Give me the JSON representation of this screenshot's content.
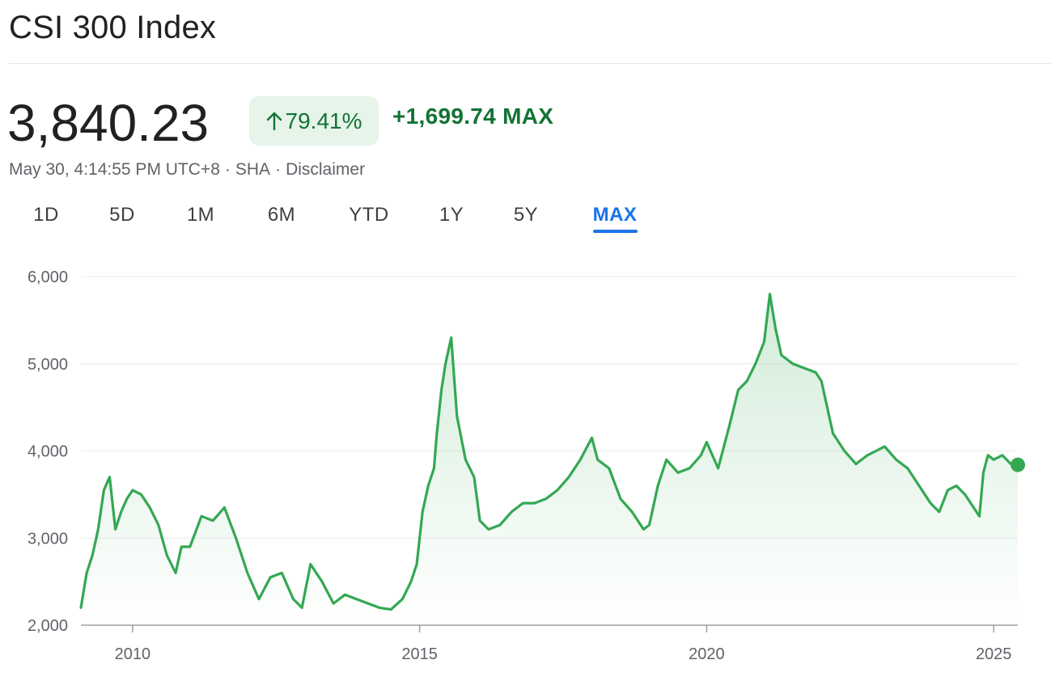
{
  "header": {
    "title": "CSI 300 Index",
    "price": "3,840.23",
    "change_percent": "79.41%",
    "change_abs": "+1,699.74 MAX",
    "timestamp": "May 30, 4:14:55 PM UTC+8",
    "exchange": "SHA",
    "disclaimer": "Disclaimer",
    "separator": "·"
  },
  "tabs": [
    {
      "label": "1D",
      "active": false
    },
    {
      "label": "5D",
      "active": false
    },
    {
      "label": "1M",
      "active": false
    },
    {
      "label": "6M",
      "active": false
    },
    {
      "label": "YTD",
      "active": false
    },
    {
      "label": "1Y",
      "active": false
    },
    {
      "label": "5Y",
      "active": false
    },
    {
      "label": "MAX",
      "active": true
    }
  ],
  "colors": {
    "line": "#34a853",
    "up_text": "#137333",
    "badge_bg": "#e6f4ea",
    "active_tab": "#1a73e8"
  },
  "icons": {
    "change_arrow": "arrow-up-icon"
  },
  "chart_data": {
    "type": "area",
    "y_tick_labels": [
      "6,000",
      "5,000",
      "4,000",
      "3,000",
      "2,000"
    ],
    "y_ticks": [
      6000,
      5000,
      4000,
      3000,
      2000
    ],
    "ylim": [
      2000,
      6000
    ],
    "x_tick_labels": [
      "2010",
      "2015",
      "2020",
      "2025"
    ],
    "x_ticks": [
      2010,
      2015,
      2020,
      2025
    ],
    "xlim": [
      2009.1,
      2025.42
    ],
    "grid": true,
    "series": [
      {
        "x": [
          2009.1,
          2009.2,
          2009.3,
          2009.4,
          2009.5,
          2009.6,
          2009.7,
          2009.8,
          2009.9,
          2010.0,
          2010.15,
          2010.3,
          2010.45,
          2010.6,
          2010.75,
          2010.85,
          2011.0,
          2011.2,
          2011.4,
          2011.6,
          2011.8,
          2012.0,
          2012.2,
          2012.4,
          2012.6,
          2012.8,
          2012.95,
          2013.1,
          2013.3,
          2013.5,
          2013.7,
          2013.9,
          2014.1,
          2014.3,
          2014.5,
          2014.7,
          2014.85,
          2014.95,
          2015.05,
          2015.15,
          2015.25,
          2015.3,
          2015.38,
          2015.45,
          2015.55,
          2015.65,
          2015.8,
          2015.95,
          2016.05,
          2016.2,
          2016.4,
          2016.6,
          2016.8,
          2017.0,
          2017.2,
          2017.4,
          2017.6,
          2017.8,
          2018.0,
          2018.1,
          2018.3,
          2018.5,
          2018.7,
          2018.9,
          2019.0,
          2019.15,
          2019.3,
          2019.5,
          2019.7,
          2019.9,
          2020.0,
          2020.2,
          2020.4,
          2020.55,
          2020.7,
          2020.85,
          2021.0,
          2021.1,
          2021.2,
          2021.3,
          2021.5,
          2021.7,
          2021.9,
          2022.0,
          2022.2,
          2022.4,
          2022.6,
          2022.8,
          2022.95,
          2023.1,
          2023.3,
          2023.5,
          2023.7,
          2023.9,
          2024.05,
          2024.2,
          2024.35,
          2024.5,
          2024.65,
          2024.75,
          2024.82,
          2024.9,
          2025.0,
          2025.15,
          2025.3,
          2025.42
        ],
        "y": [
          2200,
          2600,
          2800,
          3100,
          3550,
          3700,
          3100,
          3300,
          3450,
          3550,
          3500,
          3350,
          3150,
          2800,
          2600,
          2900,
          2900,
          3250,
          3200,
          3350,
          3000,
          2600,
          2300,
          2550,
          2600,
          2300,
          2200,
          2700,
          2500,
          2250,
          2350,
          2300,
          2250,
          2200,
          2180,
          2300,
          2500,
          2700,
          3300,
          3600,
          3800,
          4200,
          4700,
          5000,
          5300,
          4400,
          3900,
          3700,
          3200,
          3100,
          3150,
          3300,
          3400,
          3400,
          3450,
          3550,
          3700,
          3900,
          4150,
          3900,
          3800,
          3450,
          3300,
          3100,
          3150,
          3600,
          3900,
          3750,
          3800,
          3950,
          4100,
          3800,
          4300,
          4700,
          4800,
          5000,
          5250,
          5800,
          5400,
          5100,
          5000,
          4950,
          4900,
          4800,
          4200,
          4000,
          3850,
          3950,
          4000,
          4050,
          3900,
          3800,
          3600,
          3400,
          3300,
          3550,
          3600,
          3500,
          3350,
          3250,
          3750,
          3950,
          3900,
          3950,
          3850,
          3840
        ]
      }
    ]
  }
}
